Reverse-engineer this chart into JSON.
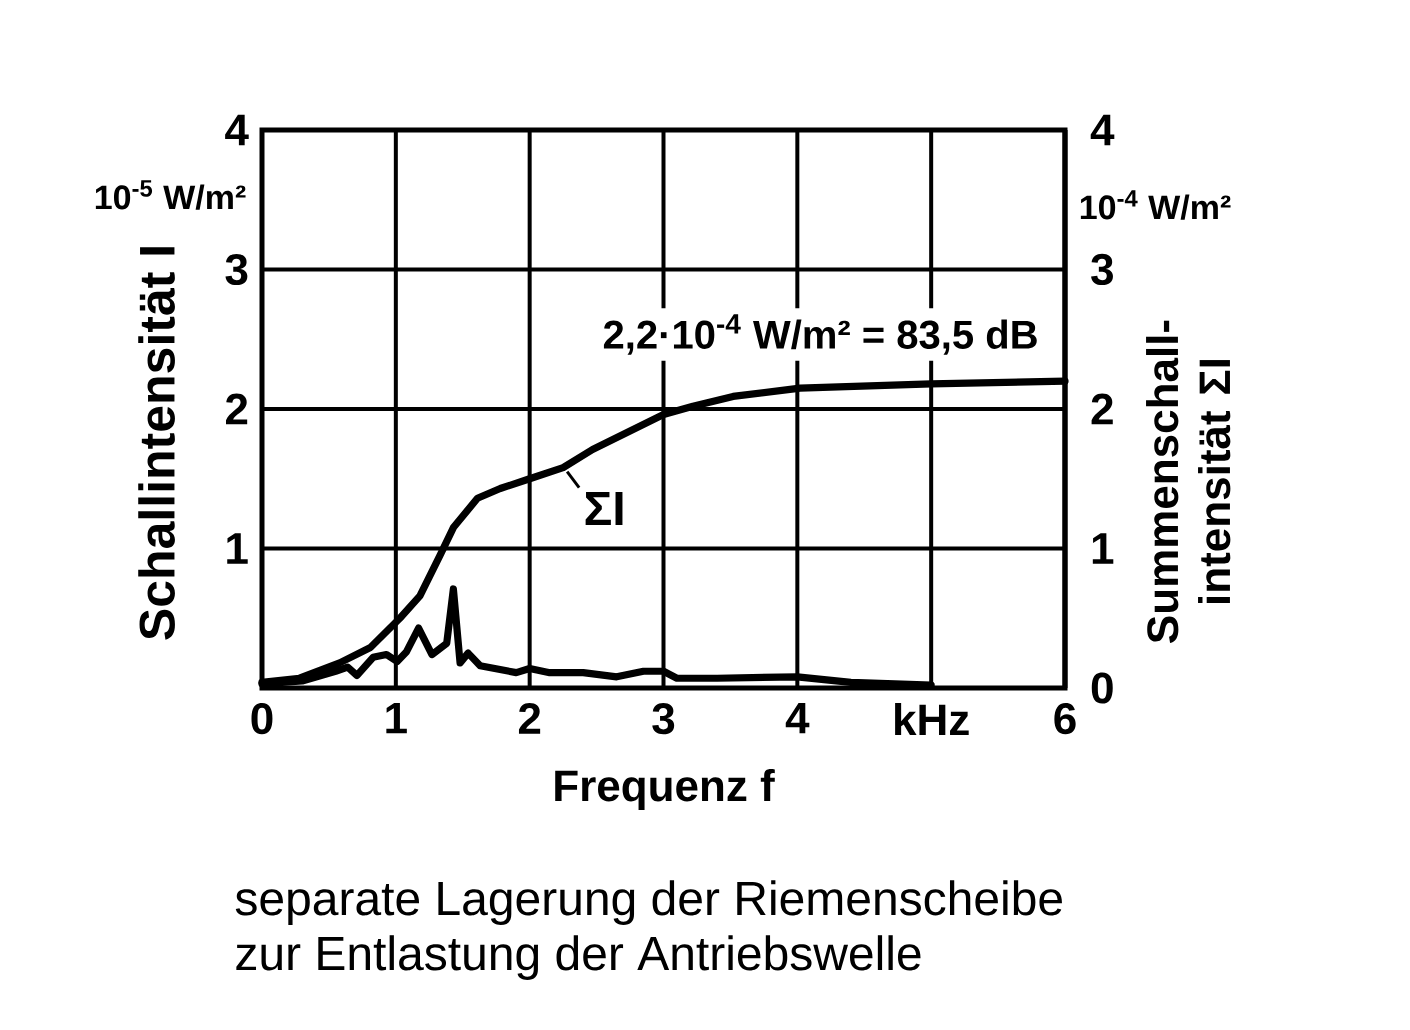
{
  "chart_data": {
    "type": "line",
    "xlabel": "Frequenz f",
    "ylabel": "Schallintensität I",
    "y2label": "Summenschall-intensität ΣI",
    "xlim": [
      0,
      6
    ],
    "xticks": [
      0,
      1,
      2,
      3,
      4,
      {
        "value": 5,
        "label": "kHz"
      },
      6
    ],
    "ylim": [
      0,
      4
    ],
    "yticks": [
      1,
      2,
      3,
      4
    ],
    "y2lim": [
      0,
      4
    ],
    "y2ticks": [
      0,
      1,
      2,
      3,
      4
    ],
    "grid": true,
    "series": [
      {
        "color": "#000000",
        "x": [
          0,
          0.3,
          0.55,
          0.64,
          0.71,
          0.83,
          0.93,
          1.01,
          1.08,
          1.17,
          1.27,
          1.38,
          1.43,
          1.48,
          1.54,
          1.63,
          1.9,
          2.0,
          2.15,
          2.4,
          2.65,
          2.85,
          3.0,
          3.1,
          3.4,
          4.0,
          4.4,
          5.0
        ],
        "values": [
          0.03,
          0.05,
          0.12,
          0.15,
          0.09,
          0.22,
          0.24,
          0.19,
          0.26,
          0.43,
          0.24,
          0.32,
          0.71,
          0.18,
          0.25,
          0.16,
          0.11,
          0.14,
          0.11,
          0.11,
          0.08,
          0.12,
          0.12,
          0.07,
          0.07,
          0.08,
          0.04,
          0.02
        ]
      },
      {
        "name": "ΣI",
        "color": "#000000",
        "axis": "y2",
        "x": [
          0,
          0.28,
          0.58,
          0.81,
          1.03,
          1.18,
          1.33,
          1.43,
          1.61,
          1.78,
          2.0,
          2.25,
          2.47,
          3.0,
          3.22,
          3.52,
          4.02,
          5.0,
          6.0
        ],
        "values": [
          0.04,
          0.07,
          0.18,
          0.29,
          0.5,
          0.66,
          0.95,
          1.15,
          1.36,
          1.43,
          1.5,
          1.58,
          1.71,
          1.96,
          2.02,
          2.09,
          2.15,
          2.18,
          2.2
        ]
      }
    ],
    "annotations": [
      "10$^{-5}$ W/m²",
      "10$^{-4}$ W/m²",
      {
        "text": "2,2·10$^{-4}$ W/m² = 83,5 dB",
        "x": 6,
        "y": 2.2
      },
      "separate Lagerung der Riemenscheibe",
      "zur Entlastung der Antriebswelle"
    ]
  }
}
